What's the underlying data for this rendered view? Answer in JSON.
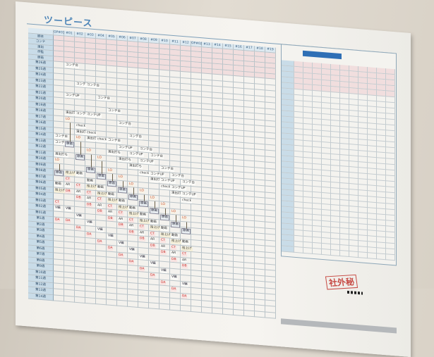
{
  "board": {
    "title": "ツーピース",
    "header_rows": [
      "脚本",
      "コンテ",
      "演出",
      "作監",
      "原画"
    ],
    "columns": [
      "OP#01",
      "#01",
      "#02",
      "#03",
      "#04",
      "#05",
      "#06",
      "#07",
      "#08",
      "#09",
      "#10",
      "#11",
      "#12",
      "OP#02",
      "#13",
      "#14",
      "#15",
      "#16",
      "#17",
      "#18",
      "#19"
    ],
    "weeks": [
      "第26週",
      "第25週",
      "第24週",
      "第23週",
      "第22週",
      "第21週",
      "第20週",
      "第19週",
      "第18週",
      "第17週",
      "第16週",
      "第15週",
      "第14週",
      "第13週",
      "第12週",
      "第11週",
      "第10週",
      "第09週",
      "第08週",
      "第07週",
      "第06週",
      "第05週",
      "第04週",
      "第03週",
      "第02週",
      "第01週",
      "第1週",
      "第2週",
      "第3週",
      "第4週",
      "第5週",
      "第6週",
      "第7週",
      "第8週",
      "第9週",
      "第10週",
      "第11週",
      "第12週",
      "第13週",
      "第14週"
    ],
    "schedule": [
      [
        [
          "コンテ台",
          12
        ],
        [
          "コンテUP",
          13
        ],
        [
          "演出打ち",
          15
        ],
        [
          "LO",
          16
        ],
        [
          "原画",
          18
        ],
        [
          "動画",
          20
        ],
        [
          "拾上げ",
          21
        ],
        [
          "CT",
          23
        ],
        [
          "V編",
          24
        ],
        [
          "DA",
          26
        ]
      ],
      [
        [
          "コンテ台",
          0
        ],
        [
          "コンテUP",
          5
        ],
        [
          "演出打ち",
          8
        ],
        [
          "LO",
          9
        ],
        [
          "原画",
          13
        ],
        [
          "拾上げ",
          18
        ],
        [
          "CT",
          19
        ],
        [
          "AR",
          20
        ],
        [
          "DB",
          21
        ],
        [
          "V編",
          24
        ],
        [
          "DA",
          26
        ]
      ],
      [
        [
          "コンテ台",
          3
        ],
        [
          "コンテUP",
          8
        ],
        [
          "check",
          10
        ],
        [
          "演出打ち",
          11
        ],
        [
          "LO",
          12
        ],
        [
          "原画",
          15
        ],
        [
          "動画",
          18
        ],
        [
          "CT",
          20
        ],
        [
          "AR",
          21
        ],
        [
          "DB",
          22
        ],
        [
          "V編",
          25
        ],
        [
          "DA",
          27
        ]
      ],
      [
        [
          "コンテ台",
          3
        ],
        [
          "コンテUP",
          8
        ],
        [
          "check",
          11
        ],
        [
          "演出打ち",
          12
        ],
        [
          "LO",
          14
        ],
        [
          "原画",
          17
        ],
        [
          "動画",
          19
        ],
        [
          "拾上げ",
          20
        ],
        [
          "CT",
          21
        ],
        [
          "AR",
          22
        ],
        [
          "DB",
          23
        ],
        [
          "V編",
          26
        ],
        [
          "DA",
          28
        ]
      ],
      [
        [
          "コンテ台",
          5
        ],
        [
          "check",
          12
        ],
        [
          "LO",
          15
        ],
        [
          "原画",
          18
        ],
        [
          "動画",
          20
        ],
        [
          "拾上げ",
          21
        ],
        [
          "CT",
          22
        ],
        [
          "AR",
          23
        ],
        [
          "DB",
          24
        ],
        [
          "V編",
          27
        ],
        [
          "DA",
          29
        ]
      ],
      [
        [
          "コンテ台",
          7
        ],
        [
          "コンテ台",
          12
        ],
        [
          "演出打ち",
          14
        ],
        [
          "LO",
          17
        ],
        [
          "原画",
          19
        ],
        [
          "動画",
          21
        ],
        [
          "拾上げ",
          22
        ],
        [
          "CT",
          23
        ],
        [
          "AR",
          24
        ],
        [
          "DB",
          25
        ],
        [
          "V編",
          28
        ],
        [
          "DA",
          30
        ]
      ],
      [
        [
          "コンテ台",
          9
        ],
        [
          "コンテUP",
          13
        ],
        [
          "演出打ち",
          15
        ],
        [
          "LO",
          18
        ],
        [
          "原画",
          20
        ],
        [
          "動画",
          22
        ],
        [
          "拾上げ",
          23
        ],
        [
          "CT",
          24
        ],
        [
          "AR",
          25
        ],
        [
          "DB",
          26
        ],
        [
          "V編",
          29
        ],
        [
          "DA",
          31
        ]
      ],
      [
        [
          "コンテ台",
          11
        ],
        [
          "コンテUP",
          14
        ],
        [
          "演出打ち",
          16
        ],
        [
          "LO",
          19
        ],
        [
          "原画",
          21
        ],
        [
          "動画",
          23
        ],
        [
          "拾上げ",
          24
        ],
        [
          "CT",
          25
        ],
        [
          "AR",
          26
        ],
        [
          "DB",
          27
        ],
        [
          "V編",
          30
        ],
        [
          "DA",
          32
        ]
      ],
      [
        [
          "コンテ台",
          13
        ],
        [
          "コンテUP",
          15
        ],
        [
          "check",
          17
        ],
        [
          "LO",
          20
        ],
        [
          "原画",
          22
        ],
        [
          "動画",
          24
        ],
        [
          "拾上げ",
          25
        ],
        [
          "CT",
          26
        ],
        [
          "AR",
          27
        ],
        [
          "DB",
          28
        ],
        [
          "V編",
          31
        ],
        [
          "DA",
          33
        ]
      ],
      [
        [
          "コンテ台",
          14
        ],
        [
          "コンテUP",
          17
        ],
        [
          "演出打ち",
          18
        ],
        [
          "LO",
          21
        ],
        [
          "原画",
          23
        ],
        [
          "動画",
          25
        ],
        [
          "拾上げ",
          26
        ],
        [
          "CT",
          27
        ],
        [
          "AR",
          28
        ],
        [
          "DB",
          29
        ],
        [
          "V編",
          32
        ],
        [
          "DA",
          34
        ]
      ],
      [
        [
          "コンテ台",
          16
        ],
        [
          "コンテUP",
          18
        ],
        [
          "check",
          19
        ],
        [
          "LO",
          22
        ],
        [
          "原画",
          24
        ],
        [
          "動画",
          26
        ],
        [
          "拾上げ",
          27
        ],
        [
          "CT",
          28
        ],
        [
          "AR",
          29
        ],
        [
          "DB",
          30
        ],
        [
          "V編",
          33
        ],
        [
          "DA",
          35
        ]
      ],
      [
        [
          "コンテ台",
          17
        ],
        [
          "コンテUP",
          19
        ],
        [
          "演出打ち",
          20
        ],
        [
          "LO",
          23
        ],
        [
          "原画",
          25
        ],
        [
          "動画",
          27
        ],
        [
          "拾上げ",
          28
        ],
        [
          "CT",
          29
        ],
        [
          "AR",
          30
        ],
        [
          "DB",
          31
        ],
        [
          "V編",
          34
        ],
        [
          "DA",
          36
        ]
      ],
      [
        [
          "コンテ台",
          18
        ],
        [
          "コンテUP",
          20
        ],
        [
          "check",
          21
        ],
        [
          "LO",
          24
        ],
        [
          "原画",
          26
        ],
        [
          "動画",
          28
        ],
        [
          "拾上げ",
          29
        ],
        [
          "CT",
          30
        ],
        [
          "AR",
          31
        ],
        [
          "DB",
          32
        ],
        [
          "V編",
          35
        ],
        [
          "DA",
          37
        ]
      ]
    ]
  },
  "right_panel": {
    "rows": 34,
    "cols": 11
  },
  "footer": {
    "stamp": "社外秘",
    "logo": "ANN"
  }
}
